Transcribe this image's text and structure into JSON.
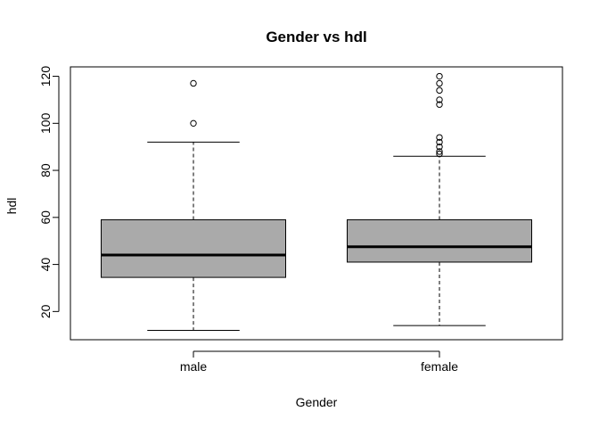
{
  "chart_data": {
    "type": "boxplot",
    "title": "Gender vs hdl",
    "xlabel": "Gender",
    "ylabel": "hdl",
    "ylim": [
      8,
      124
    ],
    "yticks": [
      20,
      40,
      60,
      80,
      100,
      120
    ],
    "ytick_labels": [
      "20",
      "40",
      "60",
      "80",
      "100",
      "120"
    ],
    "categories": [
      "male",
      "female"
    ],
    "box_color": "#aaaaaa",
    "grid": false,
    "boxes": [
      {
        "name": "male",
        "whisker_low": 12,
        "q1": 34.5,
        "median": 44,
        "q3": 59,
        "whisker_high": 92,
        "outliers": [
          100,
          117
        ]
      },
      {
        "name": "female",
        "whisker_low": 14,
        "q1": 41,
        "median": 47.5,
        "q3": 59,
        "whisker_high": 86,
        "outliers": [
          87,
          88,
          90,
          92,
          94,
          108,
          110,
          114,
          117,
          120
        ]
      }
    ]
  }
}
